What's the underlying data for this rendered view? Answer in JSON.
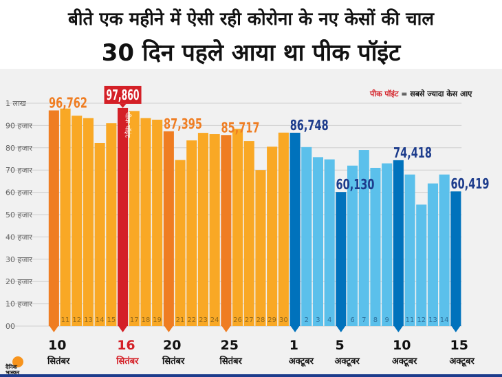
{
  "header": {
    "title_line1": "बीते एक महीने में ऐसी रही कोरोना के नए केसों की चाल",
    "title_line2": "30 दिन पहले आया था पीक पॉइंट"
  },
  "legend": {
    "peak_label": "पीक पॉइंट",
    "rest": " = सबसे ज्यादा केस आए"
  },
  "peak_bar_text": "पीक पॉइंट",
  "logo": {
    "line1": "दैनिक",
    "line2": "भास्कर"
  },
  "colors": {
    "sept_bar": "#f9a825",
    "sept_highlight": "#ef7d22",
    "peak_bar": "#d42027",
    "oct_bar": "#5bc0eb",
    "oct_highlight": "#0072bc",
    "sept_value_text": "#ef7d22",
    "oct_value_text": "#1d3c8c",
    "peak_value_bg": "#d42027"
  },
  "chart_data": {
    "type": "bar",
    "ylim": [
      0,
      100000
    ],
    "y_ticks": [
      "00",
      "10 हजार",
      "20 हजार",
      "30 हजार",
      "40 हजार",
      "50 हजार",
      "60 हजार",
      "70 हजार",
      "80 हजार",
      "90 हजार",
      "1 लाख"
    ],
    "categories": [
      "10",
      "11",
      "12",
      "13",
      "14",
      "15",
      "16",
      "17",
      "18",
      "19",
      "20",
      "21",
      "22",
      "23",
      "24",
      "25",
      "26",
      "27",
      "28",
      "29",
      "30",
      "1",
      "2",
      "3",
      "4",
      "5",
      "6",
      "7",
      "8",
      "9",
      "10",
      "11",
      "12",
      "13",
      "14",
      "15"
    ],
    "months": [
      "sep",
      "sep",
      "sep",
      "sep",
      "sep",
      "sep",
      "sep",
      "sep",
      "sep",
      "sep",
      "sep",
      "sep",
      "sep",
      "sep",
      "sep",
      "sep",
      "sep",
      "sep",
      "sep",
      "sep",
      "sep",
      "oct",
      "oct",
      "oct",
      "oct",
      "oct",
      "oct",
      "oct",
      "oct",
      "oct",
      "oct",
      "oct",
      "oct",
      "oct",
      "oct",
      "oct"
    ],
    "values": [
      96762,
      97600,
      94400,
      93300,
      82100,
      91000,
      97860,
      96500,
      93300,
      92600,
      87395,
      74500,
      83300,
      86700,
      86100,
      85717,
      88500,
      83000,
      70000,
      80500,
      86800,
      86748,
      80300,
      75800,
      74800,
      60130,
      72000,
      79000,
      71000,
      73000,
      74418,
      68000,
      54500,
      64000,
      68000,
      60419
    ],
    "value_labels": [
      {
        "index": 0,
        "text": "96,762"
      },
      {
        "index": 6,
        "text": "97,860"
      },
      {
        "index": 10,
        "text": "87,395"
      },
      {
        "index": 15,
        "text": "85,717"
      },
      {
        "index": 21,
        "text": "86,748"
      },
      {
        "index": 25,
        "text": "60,130"
      },
      {
        "index": 30,
        "text": "74,418"
      },
      {
        "index": 35,
        "text": "60,419"
      }
    ],
    "in_bar_day_labels": [
      "11",
      "12",
      "13",
      "14",
      "15",
      "17",
      "18",
      "19",
      "21",
      "22",
      "23",
      "24",
      "26",
      "27",
      "28",
      "29",
      "30",
      "2",
      "3",
      "4",
      "6",
      "7",
      "8",
      "9",
      "11",
      "12",
      "13",
      "14"
    ],
    "highlight_indices": [
      0,
      6,
      10,
      15,
      21,
      25,
      30,
      35
    ],
    "peak_index": 6,
    "axis_marks": [
      {
        "index": 0,
        "day": "10",
        "month": "सितंबर"
      },
      {
        "index": 6,
        "day": "16",
        "month": "सितंबर"
      },
      {
        "index": 10,
        "day": "20",
        "month": "सितंबर"
      },
      {
        "index": 15,
        "day": "25",
        "month": "सितंबर"
      },
      {
        "index": 21,
        "day": "1",
        "month": "अक्टूबर"
      },
      {
        "index": 25,
        "day": "5",
        "month": "अक्टूबर"
      },
      {
        "index": 30,
        "day": "10",
        "month": "अक्टूबर"
      },
      {
        "index": 35,
        "day": "15",
        "month": "अक्टूबर"
      }
    ]
  }
}
